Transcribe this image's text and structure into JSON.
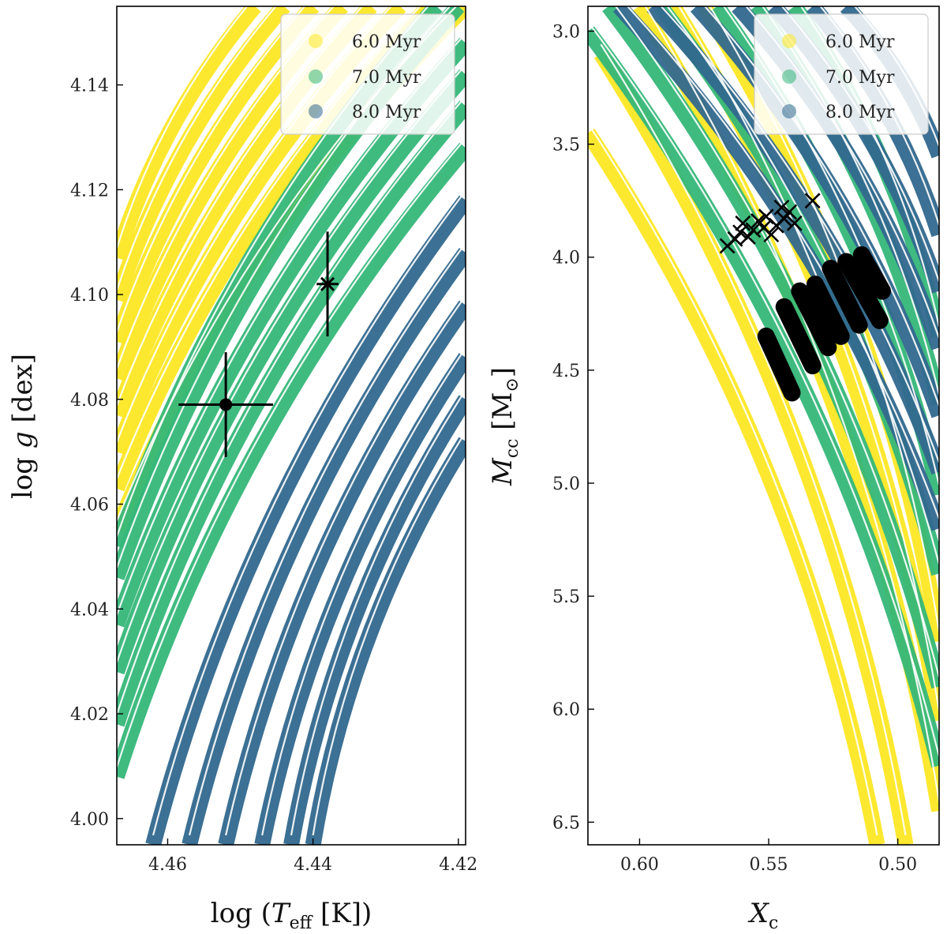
{
  "chart_data": [
    {
      "type": "scatter",
      "xlabel": "log (T_eff [K])",
      "ylabel": "log g [dex]",
      "xlim": [
        4.467,
        4.419
      ],
      "ylim": [
        4.155,
        3.995
      ],
      "x_ticks": [
        4.46,
        4.44,
        4.42
      ],
      "x_tick_labels": [
        "4.46",
        "4.44",
        "4.42"
      ],
      "y_ticks": [
        4.0,
        4.02,
        4.04,
        4.06,
        4.08,
        4.1,
        4.12,
        4.14
      ],
      "y_tick_labels": [
        "4.00",
        "4.02",
        "4.04",
        "4.06",
        "4.08",
        "4.10",
        "4.12",
        "4.14"
      ],
      "legend_position": "top-right",
      "series": [
        {
          "name": "6.0 Myr",
          "color": "#fde725",
          "tracks": [
            {
              "x0": 4.467,
              "y0": 4.055,
              "x1": 4.419,
              "y1": 4.155
            },
            {
              "x0": 4.467,
              "y0": 4.063,
              "x1": 4.424,
              "y1": 4.155
            },
            {
              "x0": 4.467,
              "y0": 4.07,
              "x1": 4.428,
              "y1": 4.155
            },
            {
              "x0": 4.467,
              "y0": 4.077,
              "x1": 4.432,
              "y1": 4.155
            },
            {
              "x0": 4.467,
              "y0": 4.084,
              "x1": 4.436,
              "y1": 4.155
            },
            {
              "x0": 4.467,
              "y0": 4.091,
              "x1": 4.44,
              "y1": 4.155
            },
            {
              "x0": 4.467,
              "y0": 4.099,
              "x1": 4.444,
              "y1": 4.155
            },
            {
              "x0": 4.467,
              "y0": 4.107,
              "x1": 4.448,
              "y1": 4.155
            }
          ]
        },
        {
          "name": "7.0 Myr",
          "color": "#35b779",
          "tracks": [
            {
              "x0": 4.467,
              "y0": 4.008,
              "x1": 4.419,
              "y1": 4.128
            },
            {
              "x0": 4.467,
              "y0": 4.018,
              "x1": 4.419,
              "y1": 4.136
            },
            {
              "x0": 4.467,
              "y0": 4.028,
              "x1": 4.419,
              "y1": 4.142
            },
            {
              "x0": 4.467,
              "y0": 4.037,
              "x1": 4.419,
              "y1": 4.148
            },
            {
              "x0": 4.467,
              "y0": 4.046,
              "x1": 4.42,
              "y1": 4.155
            },
            {
              "x0": 4.467,
              "y0": 4.052,
              "x1": 4.423,
              "y1": 4.155
            }
          ]
        },
        {
          "name": "8.0 Myr",
          "color": "#31688e",
          "tracks": [
            {
              "x0": 4.462,
              "y0": 3.995,
              "x1": 4.419,
              "y1": 4.118
            },
            {
              "x0": 4.457,
              "y0": 3.995,
              "x1": 4.419,
              "y1": 4.108
            },
            {
              "x0": 4.452,
              "y0": 3.995,
              "x1": 4.419,
              "y1": 4.098
            },
            {
              "x0": 4.447,
              "y0": 3.995,
              "x1": 4.419,
              "y1": 4.088
            },
            {
              "x0": 4.443,
              "y0": 3.995,
              "x1": 4.419,
              "y1": 4.08
            },
            {
              "x0": 4.44,
              "y0": 3.995,
              "x1": 4.419,
              "y1": 4.072
            }
          ]
        }
      ],
      "observations": [
        {
          "marker": "circle",
          "x": 4.452,
          "y": 4.079,
          "xerr": 0.0065,
          "yerr": 0.01
        },
        {
          "marker": "x-cross",
          "x": 4.438,
          "y": 4.102,
          "xerr": 0.0015,
          "yerr": 0.01
        }
      ]
    },
    {
      "type": "scatter",
      "xlabel": "X_c",
      "ylabel": "M_cc [M_⊙]",
      "xlim": [
        0.62,
        0.484
      ],
      "ylim": [
        2.89,
        6.6
      ],
      "x_ticks": [
        0.6,
        0.55,
        0.5
      ],
      "x_tick_labels": [
        "0.60",
        "0.55",
        "0.50"
      ],
      "y_ticks": [
        3.0,
        3.5,
        4.0,
        4.5,
        5.0,
        5.5,
        6.0,
        6.5
      ],
      "y_tick_labels": [
        "3.0",
        "3.5",
        "4.0",
        "4.5",
        "5.0",
        "5.5",
        "6.0",
        "6.5"
      ],
      "legend_position": "top-right",
      "series": [
        {
          "name": "6.0 Myr",
          "color": "#fde725",
          "tracks": [
            {
              "x0": 0.62,
              "y0": 3.45,
              "x1": 0.508,
              "y1": 6.6
            },
            {
              "x0": 0.615,
              "y0": 3.1,
              "x1": 0.497,
              "y1": 6.6
            },
            {
              "x0": 0.6,
              "y0": 2.89,
              "x1": 0.484,
              "y1": 6.45
            },
            {
              "x0": 0.587,
              "y0": 2.89,
              "x1": 0.484,
              "y1": 6.05
            },
            {
              "x0": 0.575,
              "y0": 2.89,
              "x1": 0.484,
              "y1": 5.7
            }
          ]
        },
        {
          "name": "7.0 Myr",
          "color": "#35b779",
          "tracks": [
            {
              "x0": 0.62,
              "y0": 3.0,
              "x1": 0.484,
              "y1": 6.25
            },
            {
              "x0": 0.612,
              "y0": 2.89,
              "x1": 0.484,
              "y1": 5.9
            },
            {
              "x0": 0.592,
              "y0": 2.89,
              "x1": 0.484,
              "y1": 5.4
            },
            {
              "x0": 0.57,
              "y0": 2.89,
              "x1": 0.484,
              "y1": 5.05
            },
            {
              "x0": 0.555,
              "y0": 2.89,
              "x1": 0.484,
              "y1": 4.65
            },
            {
              "x0": 0.54,
              "y0": 2.89,
              "x1": 0.484,
              "y1": 4.35
            }
          ]
        },
        {
          "name": "8.0 Myr",
          "color": "#31688e",
          "tracks": [
            {
              "x0": 0.608,
              "y0": 2.89,
              "x1": 0.484,
              "y1": 5.2
            },
            {
              "x0": 0.595,
              "y0": 2.89,
              "x1": 0.484,
              "y1": 4.95
            },
            {
              "x0": 0.578,
              "y0": 2.89,
              "x1": 0.484,
              "y1": 4.7
            },
            {
              "x0": 0.562,
              "y0": 2.89,
              "x1": 0.484,
              "y1": 4.4
            },
            {
              "x0": 0.548,
              "y0": 2.89,
              "x1": 0.484,
              "y1": 4.15
            },
            {
              "x0": 0.533,
              "y0": 2.89,
              "x1": 0.484,
              "y1": 3.9
            },
            {
              "x0": 0.52,
              "y0": 2.89,
              "x1": 0.484,
              "y1": 3.55
            }
          ]
        }
      ],
      "thick_segments": [
        {
          "x0": 0.551,
          "y0": 4.35,
          "x1": 0.541,
          "y1": 4.6
        },
        {
          "x0": 0.544,
          "y0": 4.22,
          "x1": 0.533,
          "y1": 4.48
        },
        {
          "x0": 0.538,
          "y0": 4.15,
          "x1": 0.527,
          "y1": 4.4
        },
        {
          "x0": 0.532,
          "y0": 4.12,
          "x1": 0.522,
          "y1": 4.35
        },
        {
          "x0": 0.526,
          "y0": 4.05,
          "x1": 0.515,
          "y1": 4.3
        },
        {
          "x0": 0.52,
          "y0": 4.02,
          "x1": 0.507,
          "y1": 4.28
        },
        {
          "x0": 0.514,
          "y0": 3.99,
          "x1": 0.506,
          "y1": 4.15
        }
      ],
      "cross_points": [
        {
          "x": 0.566,
          "y": 3.95
        },
        {
          "x": 0.563,
          "y": 3.92
        },
        {
          "x": 0.561,
          "y": 3.89
        },
        {
          "x": 0.56,
          "y": 3.85
        },
        {
          "x": 0.558,
          "y": 3.91
        },
        {
          "x": 0.556,
          "y": 3.88
        },
        {
          "x": 0.554,
          "y": 3.84
        },
        {
          "x": 0.552,
          "y": 3.87
        },
        {
          "x": 0.551,
          "y": 3.82
        },
        {
          "x": 0.549,
          "y": 3.9
        },
        {
          "x": 0.547,
          "y": 3.86
        },
        {
          "x": 0.545,
          "y": 3.78
        },
        {
          "x": 0.544,
          "y": 3.83
        },
        {
          "x": 0.542,
          "y": 3.8
        },
        {
          "x": 0.54,
          "y": 3.85
        },
        {
          "x": 0.533,
          "y": 3.75
        }
      ]
    }
  ]
}
